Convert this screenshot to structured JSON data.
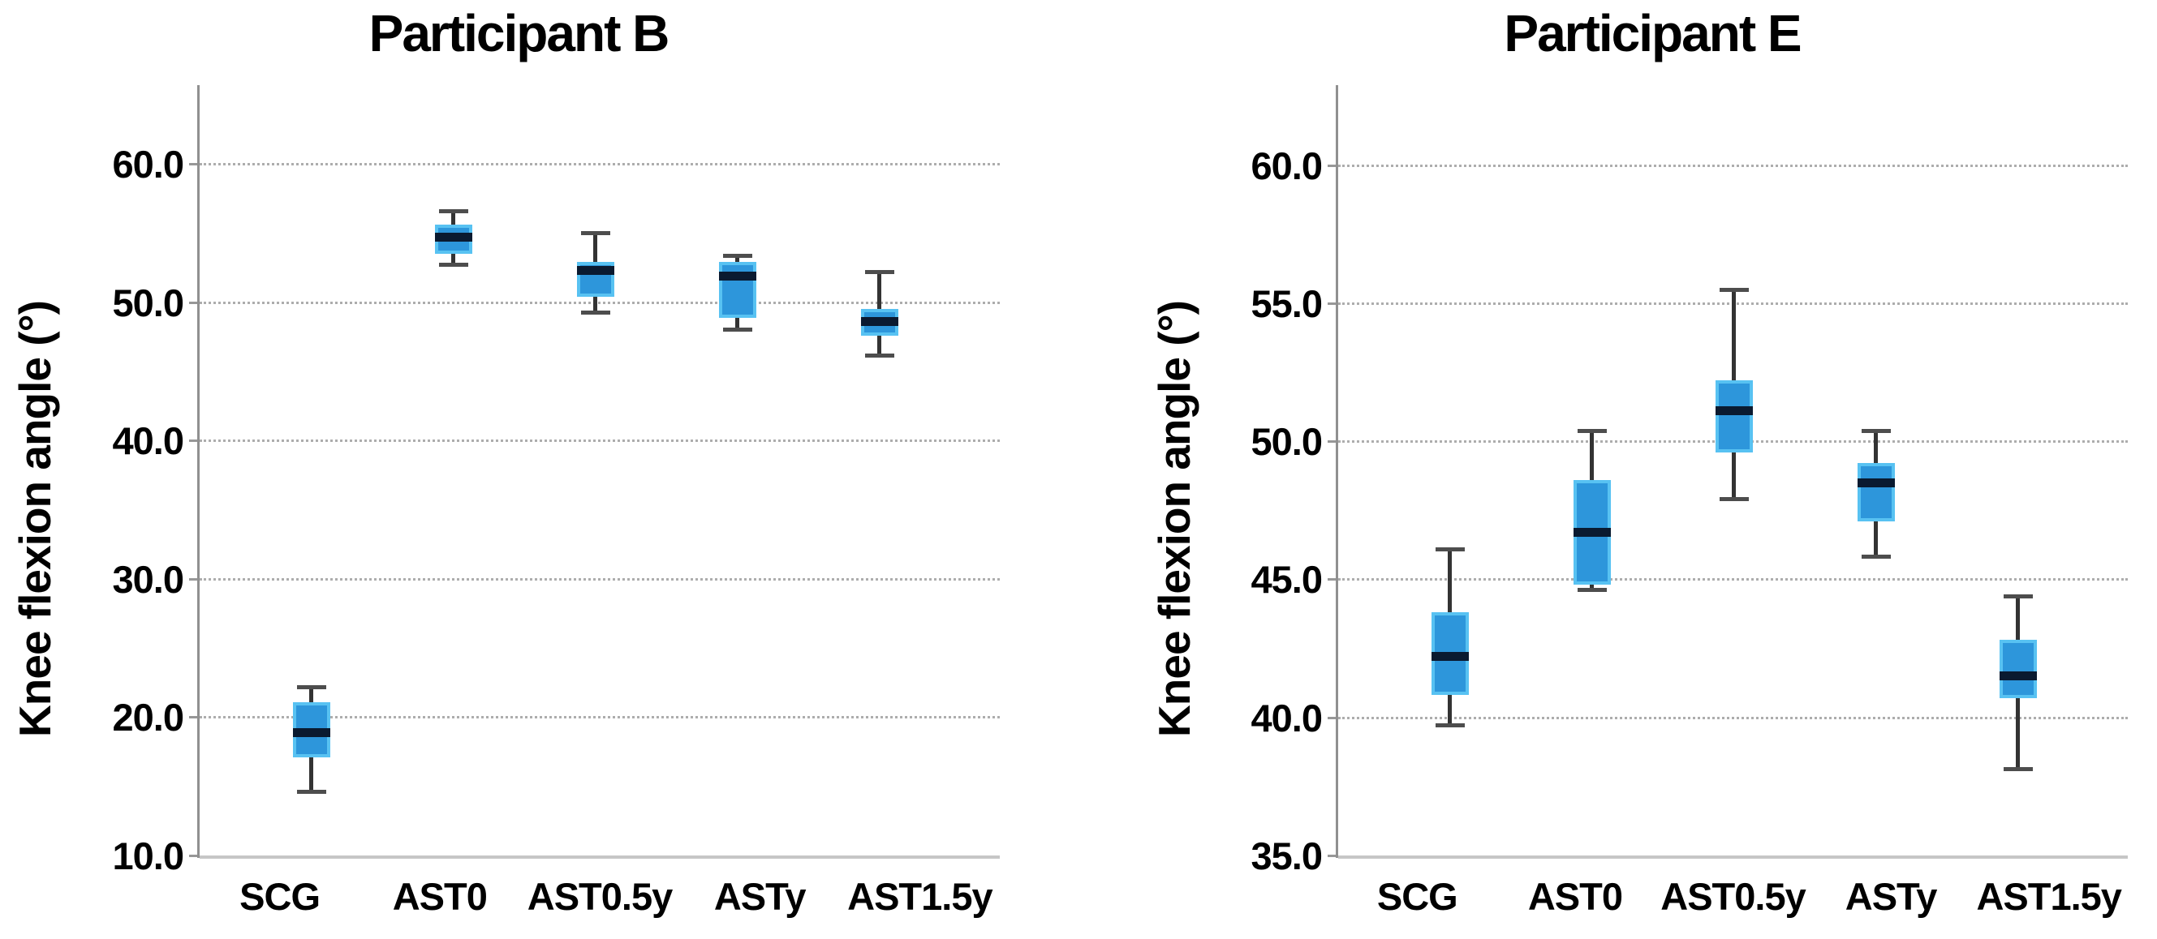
{
  "style": {
    "background": "#ffffff",
    "box_fill": "#2D96DB",
    "box_border": "#58C2F2",
    "median_color": "#0A1A30",
    "whisker_color": "#333333",
    "grid_color": "#ADADAD",
    "axis_color": "#909090",
    "text_color": "#000000"
  },
  "chart_data": [
    {
      "type": "box",
      "title": "Participant B",
      "ylabel": "Knee flexion angle (°)",
      "categories": [
        "SCG",
        "AST0",
        "AST0.5y",
        "ASTy",
        "AST1.5y"
      ],
      "ylim": [
        10.0,
        65.7
      ],
      "yticks": [
        10,
        20,
        30,
        40,
        50,
        60
      ],
      "ytick_labels": [
        "10.0",
        "20.0",
        "30.0",
        "40.0",
        "50.0",
        "60.0"
      ],
      "grid": "horizontal-dotted",
      "legend": "none",
      "boxes": [
        {
          "category": "SCG",
          "whisker_low": 14.6,
          "q1": 17.1,
          "median": 18.9,
          "q3": 21.1,
          "whisker_high": 22.2
        },
        {
          "category": "AST0",
          "whisker_low": 52.7,
          "q1": 53.5,
          "median": 54.7,
          "q3": 55.6,
          "whisker_high": 56.6
        },
        {
          "category": "AST0.5y",
          "whisker_low": 49.2,
          "q1": 50.4,
          "median": 52.3,
          "q3": 52.9,
          "whisker_high": 55.0
        },
        {
          "category": "ASTy",
          "whisker_low": 48.0,
          "q1": 48.9,
          "median": 51.9,
          "q3": 52.9,
          "whisker_high": 53.4
        },
        {
          "category": "AST1.5y",
          "whisker_low": 46.1,
          "q1": 47.6,
          "median": 48.6,
          "q3": 49.5,
          "whisker_high": 52.2
        }
      ]
    },
    {
      "type": "box",
      "title": "Participant E",
      "ylabel": "Knee flexion angle (°)",
      "categories": [
        "SCG",
        "AST0",
        "AST0.5y",
        "ASTy",
        "AST1.5y"
      ],
      "ylim": [
        35.0,
        62.9
      ],
      "yticks": [
        35,
        40,
        45,
        50,
        55,
        60
      ],
      "ytick_labels": [
        "35.0",
        "40.0",
        "45.0",
        "50.0",
        "55.0",
        "60.0"
      ],
      "grid": "horizontal-dotted",
      "legend": "none",
      "boxes": [
        {
          "category": "SCG",
          "whisker_low": 39.7,
          "q1": 40.8,
          "median": 42.2,
          "q3": 43.8,
          "whisker_high": 46.1
        },
        {
          "category": "AST0",
          "whisker_low": 44.6,
          "q1": 44.8,
          "median": 46.7,
          "q3": 48.6,
          "whisker_high": 50.4
        },
        {
          "category": "AST0.5y",
          "whisker_low": 47.9,
          "q1": 49.6,
          "median": 51.1,
          "q3": 52.2,
          "whisker_high": 55.5
        },
        {
          "category": "ASTy",
          "whisker_low": 45.8,
          "q1": 47.1,
          "median": 48.5,
          "q3": 49.2,
          "whisker_high": 50.4
        },
        {
          "category": "AST1.5y",
          "whisker_low": 38.1,
          "q1": 40.7,
          "median": 41.5,
          "q3": 42.8,
          "whisker_high": 44.4
        }
      ]
    }
  ]
}
